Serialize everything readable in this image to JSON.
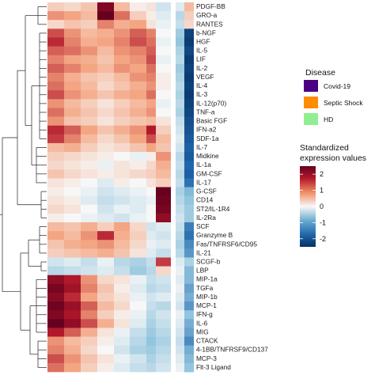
{
  "chart_data": {
    "type": "heatmap",
    "rows": [
      "PDGF-BB",
      "GRO-a",
      "RANTES",
      "b-NGF",
      "HGF",
      "IL-5",
      "LIF",
      "IL-2",
      "VEGF",
      "IL-4",
      "IL-3",
      "IL-12(p70)",
      "TNF-a",
      "Basic FGF",
      "IFN-a2",
      "SDF-1a",
      "IL-7",
      "Midkine",
      "IL-1a",
      "GM-CSF",
      "IL-17",
      "G-CSF",
      "CD14",
      "ST2/IL-1R4",
      "IL-2Ra",
      "SCF",
      "Granzyme B",
      "Fas/TNFRSF6/CD95",
      "IL-21",
      "SCGF-b",
      "LBP",
      "MIP-1a",
      "TGFa",
      "MIP-1b",
      "MCP-1",
      "IFN-g",
      "IL-6",
      "MIG",
      "CTACK",
      "4-1BB/TNFRSF9/CD137",
      "MCP-3",
      "Flt-3 Ligand"
    ],
    "values": [
      [
        0.4,
        0.3,
        0.5,
        2.2,
        0.6,
        0.1,
        0.2,
        -0.3,
        -0.2,
        -1.2
      ],
      [
        0.9,
        0.8,
        0.6,
        2.6,
        1.1,
        0.4,
        0.1,
        -0.2,
        -0.5,
        -1.0
      ],
      [
        0.3,
        0.5,
        0.4,
        1.0,
        0.7,
        0.8,
        0.2,
        -0.1,
        -0.4,
        -1.5
      ],
      [
        1.3,
        0.9,
        0.6,
        0.7,
        0.9,
        1.2,
        1.0,
        0.0,
        -0.7,
        -2.2
      ],
      [
        1.5,
        1.0,
        0.7,
        0.8,
        1.0,
        1.3,
        1.1,
        -0.1,
        -0.8,
        -2.2
      ],
      [
        1.2,
        1.1,
        0.9,
        0.6,
        0.9,
        1.0,
        1.2,
        0.0,
        -0.6,
        -2.1
      ],
      [
        1.0,
        0.8,
        0.7,
        0.5,
        0.8,
        0.9,
        1.3,
        -0.1,
        -0.5,
        -2.3
      ],
      [
        1.2,
        1.0,
        0.8,
        0.6,
        0.9,
        0.8,
        1.1,
        0.0,
        -0.7,
        -2.1
      ],
      [
        1.0,
        0.7,
        0.5,
        0.4,
        0.6,
        0.9,
        1.0,
        0.1,
        -0.6,
        -2.2
      ],
      [
        1.1,
        0.8,
        0.6,
        0.3,
        0.5,
        0.7,
        0.9,
        0.1,
        -0.5,
        -2.0
      ],
      [
        1.3,
        0.9,
        0.7,
        0.5,
        0.7,
        0.8,
        1.1,
        0.0,
        -0.6,
        -2.2
      ],
      [
        0.9,
        0.6,
        0.4,
        0.2,
        0.4,
        0.6,
        0.8,
        -0.1,
        -0.5,
        -2.1
      ],
      [
        1.1,
        0.7,
        0.5,
        0.3,
        0.5,
        0.7,
        0.9,
        0.0,
        -0.6,
        -2.0
      ],
      [
        0.9,
        0.5,
        0.4,
        0.2,
        0.4,
        0.5,
        0.6,
        0.2,
        -0.4,
        -1.9
      ],
      [
        1.5,
        1.2,
        0.8,
        0.5,
        0.7,
        0.9,
        1.6,
        0.4,
        -0.3,
        -1.8
      ],
      [
        1.4,
        1.0,
        0.6,
        0.3,
        0.5,
        0.8,
        1.3,
        0.6,
        -0.2,
        -1.7
      ],
      [
        0.6,
        0.7,
        0.4,
        0.2,
        0.3,
        0.5,
        0.8,
        0.5,
        -0.3,
        -1.6
      ],
      [
        0.4,
        0.3,
        0.2,
        0.1,
        0.0,
        -0.1,
        0.1,
        0.9,
        -0.5,
        -1.7
      ],
      [
        0.3,
        0.2,
        0.1,
        -0.1,
        0.2,
        0.1,
        0.3,
        0.7,
        -0.4,
        -1.5
      ],
      [
        0.5,
        0.3,
        0.2,
        0.1,
        0.2,
        0.3,
        0.4,
        0.6,
        -0.5,
        -1.6
      ],
      [
        0.2,
        0.1,
        0.0,
        -0.2,
        0.1,
        0.0,
        0.2,
        0.4,
        -0.4,
        -1.4
      ],
      [
        0.1,
        0.0,
        -0.1,
        -0.3,
        -0.2,
        -0.1,
        0.0,
        2.6,
        -0.6,
        -1.0
      ],
      [
        0.2,
        0.1,
        -0.2,
        -0.4,
        -0.3,
        -0.2,
        -0.1,
        2.4,
        -0.5,
        -0.9
      ],
      [
        0.3,
        0.2,
        0.0,
        -0.3,
        -0.1,
        -0.2,
        0.0,
        2.3,
        -0.4,
        -0.8
      ],
      [
        0.1,
        0.0,
        -0.1,
        -0.2,
        -0.3,
        -0.1,
        0.0,
        2.0,
        -0.3,
        -0.7
      ],
      [
        0.6,
        0.5,
        0.7,
        0.4,
        0.8,
        0.3,
        -0.3,
        -0.2,
        -0.4,
        -1.2
      ],
      [
        0.8,
        0.6,
        0.9,
        1.5,
        0.7,
        0.4,
        -0.2,
        -0.3,
        -0.5,
        -1.4
      ],
      [
        0.5,
        0.7,
        0.8,
        0.9,
        0.6,
        0.3,
        -0.1,
        -0.2,
        -0.6,
        -1.3
      ],
      [
        0.4,
        0.5,
        0.6,
        0.7,
        0.5,
        0.2,
        -0.2,
        -0.4,
        -0.5,
        -1.2
      ],
      [
        -0.3,
        -0.2,
        -0.4,
        -0.1,
        -0.5,
        -0.6,
        -0.4,
        1.4,
        -0.2,
        -0.6
      ],
      [
        -0.5,
        -0.4,
        -0.3,
        -0.2,
        -0.4,
        -0.7,
        -0.5,
        0.3,
        -0.1,
        -0.8
      ],
      [
        2.0,
        1.6,
        0.9,
        0.3,
        0.2,
        -0.1,
        -0.4,
        -0.3,
        -0.2,
        -0.9
      ],
      [
        2.3,
        1.8,
        1.0,
        0.5,
        0.1,
        -0.2,
        -0.5,
        -0.4,
        -0.1,
        -1.0
      ],
      [
        2.1,
        1.5,
        0.8,
        0.4,
        0.2,
        -0.1,
        -0.3,
        -0.2,
        -0.2,
        -0.9
      ],
      [
        2.4,
        1.9,
        1.2,
        0.6,
        0.3,
        0.0,
        -0.4,
        -0.5,
        -0.3,
        -1.1
      ],
      [
        2.2,
        1.7,
        1.0,
        0.4,
        0.1,
        -0.1,
        -0.5,
        -0.3,
        -0.1,
        -0.8
      ],
      [
        2.5,
        2.0,
        1.3,
        0.7,
        0.2,
        -0.2,
        -0.6,
        -0.4,
        -0.2,
        -1.0
      ],
      [
        1.6,
        1.2,
        0.7,
        0.2,
        -0.1,
        -0.4,
        -0.7,
        -0.5,
        -0.3,
        -1.1
      ],
      [
        0.9,
        0.6,
        0.4,
        0.1,
        -0.2,
        -0.5,
        -0.8,
        -0.6,
        -0.4,
        -1.2
      ],
      [
        1.0,
        0.7,
        0.3,
        0.0,
        -0.3,
        -0.6,
        -0.7,
        -0.5,
        -0.3,
        -1.0
      ],
      [
        1.3,
        0.9,
        0.5,
        0.2,
        -0.1,
        -0.3,
        -0.6,
        -0.4,
        -0.2,
        -0.9
      ],
      [
        1.1,
        0.8,
        0.4,
        0.1,
        -0.2,
        -0.4,
        -0.5,
        -0.3,
        -0.1,
        -0.8
      ]
    ],
    "scale": {
      "min": -2.5,
      "max": 2.5,
      "low_color": "#053061",
      "mid_color": "#f7f7f7",
      "high_color": "#67001f"
    },
    "legend_disease": {
      "title": "Disease",
      "items": [
        {
          "label": "Covid-19",
          "color": "#4b0082"
        },
        {
          "label": "Septic Shock",
          "color": "#ff8c00"
        },
        {
          "label": "HD",
          "color": "#90ee90"
        }
      ]
    },
    "legend_expression": {
      "title_line1": "Standardized",
      "title_line2": "expression values",
      "ticks": [
        2,
        1,
        0,
        -1,
        -2
      ]
    }
  }
}
